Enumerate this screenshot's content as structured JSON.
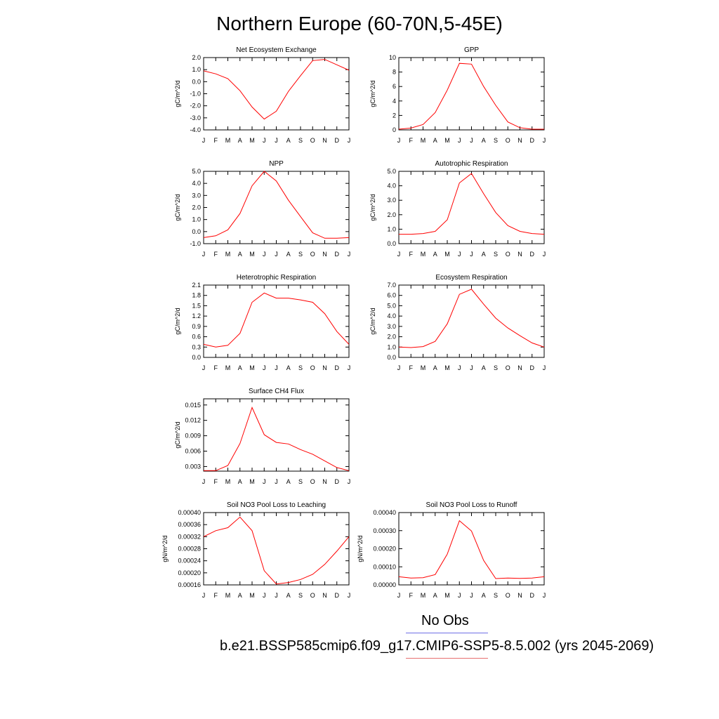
{
  "title": "Northern Europe (60-70N,5-45E)",
  "legend": {
    "obs_label": "No Obs",
    "obs_color": "#6f6fe6",
    "case_label": "b.e21.BSSP585cmip6.f09_g17.CMIP6-SSP5-8.5.002 (yrs 2045-2069)",
    "case_color": "#e66f6f"
  },
  "line_color": "#ff0000",
  "chart_data": [
    {
      "type": "line",
      "title": "Net Ecosystem Exchange",
      "ylabel": "gC/m^2/d",
      "categories": [
        "J",
        "F",
        "M",
        "A",
        "M",
        "J",
        "J",
        "A",
        "S",
        "O",
        "N",
        "D",
        "J"
      ],
      "values": [
        0.9,
        0.65,
        0.25,
        -0.75,
        -2.1,
        -3.1,
        -2.45,
        -0.8,
        0.5,
        1.75,
        1.85,
        1.4,
        0.95
      ],
      "ylim": [
        -4.0,
        2.0
      ],
      "yticks": [
        "-4.0",
        "-3.0",
        "-2.0",
        "-1.0",
        "0.0",
        "1.0",
        "2.0"
      ]
    },
    {
      "type": "line",
      "title": "GPP",
      "ylabel": "gC/m^2/d",
      "categories": [
        "J",
        "F",
        "M",
        "A",
        "M",
        "J",
        "J",
        "A",
        "S",
        "O",
        "N",
        "D",
        "J"
      ],
      "values": [
        0.1,
        0.25,
        0.75,
        2.4,
        5.5,
        9.2,
        9.1,
        6.0,
        3.4,
        1.1,
        0.3,
        0.1,
        0.1
      ],
      "ylim": [
        0,
        10
      ],
      "yticks": [
        "0",
        "2",
        "4",
        "6",
        "8",
        "10"
      ]
    },
    {
      "type": "line",
      "title": "NPP",
      "ylabel": "gC/m^2/d",
      "categories": [
        "J",
        "F",
        "M",
        "A",
        "M",
        "J",
        "J",
        "A",
        "S",
        "O",
        "N",
        "D",
        "J"
      ],
      "values": [
        -0.5,
        -0.35,
        0.15,
        1.5,
        3.8,
        5.0,
        4.2,
        2.6,
        1.25,
        -0.1,
        -0.55,
        -0.55,
        -0.5
      ],
      "ylim": [
        -1.0,
        5.0
      ],
      "yticks": [
        "-1.0",
        "0.0",
        "1.0",
        "2.0",
        "3.0",
        "4.0",
        "5.0"
      ]
    },
    {
      "type": "line",
      "title": "Autotrophic Respiration",
      "ylabel": "gC/m^2/d",
      "categories": [
        "J",
        "F",
        "M",
        "A",
        "M",
        "J",
        "J",
        "A",
        "S",
        "O",
        "N",
        "D",
        "J"
      ],
      "values": [
        0.65,
        0.65,
        0.7,
        0.85,
        1.65,
        4.2,
        4.85,
        3.45,
        2.15,
        1.25,
        0.85,
        0.7,
        0.65
      ],
      "ylim": [
        0,
        5.0
      ],
      "yticks": [
        "0.0",
        "1.0",
        "2.0",
        "3.0",
        "4.0",
        "5.0"
      ]
    },
    {
      "type": "line",
      "title": "Heterotrophic Respiration",
      "ylabel": "gC/m^2/d",
      "categories": [
        "J",
        "F",
        "M",
        "A",
        "M",
        "J",
        "J",
        "A",
        "S",
        "O",
        "N",
        "D",
        "J"
      ],
      "values": [
        0.38,
        0.3,
        0.35,
        0.7,
        1.6,
        1.87,
        1.72,
        1.72,
        1.67,
        1.6,
        1.27,
        0.75,
        0.38
      ],
      "ylim": [
        0,
        2.1
      ],
      "yticks": [
        "0.0",
        "0.3",
        "0.6",
        "0.9",
        "1.2",
        "1.5",
        "1.8",
        "2.1"
      ]
    },
    {
      "type": "line",
      "title": "Ecosystem Respiration",
      "ylabel": "gC/m^2/d",
      "categories": [
        "J",
        "F",
        "M",
        "A",
        "M",
        "J",
        "J",
        "A",
        "S",
        "O",
        "N",
        "D",
        "J"
      ],
      "values": [
        1.0,
        0.95,
        1.05,
        1.55,
        3.25,
        6.1,
        6.6,
        5.15,
        3.8,
        2.85,
        2.1,
        1.4,
        1.0
      ],
      "ylim": [
        0,
        7.0
      ],
      "yticks": [
        "0.0",
        "1.0",
        "2.0",
        "3.0",
        "4.0",
        "5.0",
        "6.0",
        "7.0"
      ]
    },
    {
      "type": "line",
      "title": "Surface CH4 Flux",
      "ylabel": "gC/m^2/d",
      "categories": [
        "J",
        "F",
        "M",
        "A",
        "M",
        "J",
        "J",
        "A",
        "S",
        "O",
        "N",
        "D",
        "J"
      ],
      "values": [
        0.0022,
        0.0022,
        0.0032,
        0.0075,
        0.0145,
        0.0092,
        0.0077,
        0.0074,
        0.0063,
        0.0054,
        0.0041,
        0.0028,
        0.0022
      ],
      "ylim": [
        0.0021,
        0.0162
      ],
      "yticks": [
        "0.003",
        "0.006",
        "0.009",
        "0.012",
        "0.015"
      ],
      "ytick_values": [
        0.003,
        0.006,
        0.009,
        0.012,
        0.015
      ]
    },
    {
      "type": "line",
      "title": "Soil NO3 Pool Loss to Leaching",
      "ylabel": "gN/m^2/d",
      "categories": [
        "J",
        "F",
        "M",
        "A",
        "M",
        "J",
        "J",
        "A",
        "S",
        "O",
        "N",
        "D",
        "J"
      ],
      "values": [
        0.00032,
        0.00034,
        0.00035,
        0.000385,
        0.00034,
        0.000207,
        0.000163,
        0.000168,
        0.000178,
        0.000195,
        0.000228,
        0.000272,
        0.00032
      ],
      "ylim": [
        0.00016,
        0.0004
      ],
      "yticks": [
        "0.00016",
        "0.00020",
        "0.00024",
        "0.00028",
        "0.00032",
        "0.00036",
        "0.00040"
      ]
    },
    {
      "type": "line",
      "title": "Soil NO3 Pool Loss to Runoff",
      "ylabel": "gN/m^2/d",
      "categories": [
        "J",
        "F",
        "M",
        "A",
        "M",
        "J",
        "J",
        "A",
        "S",
        "O",
        "N",
        "D",
        "J"
      ],
      "values": [
        4.5e-05,
        3.8e-05,
        4e-05,
        5.7e-05,
        0.00017,
        0.000355,
        0.000298,
        0.000135,
        3.5e-05,
        3.8e-05,
        3.6e-05,
        3.8e-05,
        4.5e-05
      ],
      "ylim": [
        0,
        0.0004
      ],
      "yticks": [
        "0.00000",
        "0.00010",
        "0.00020",
        "0.00030",
        "0.00040"
      ]
    }
  ]
}
